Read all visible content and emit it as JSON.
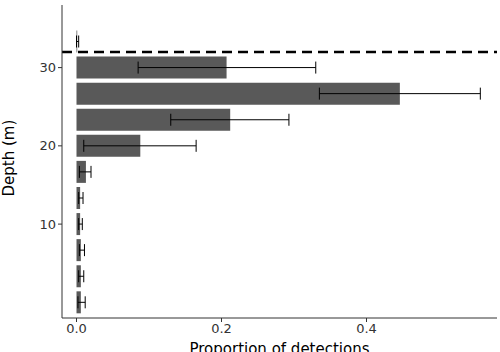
{
  "chart_data": {
    "type": "bar",
    "orientation": "horizontal",
    "x_label": "Proportion of detections",
    "y_label": "Depth (m)",
    "categories": [
      0,
      3.33,
      6.67,
      10,
      13.33,
      16.67,
      20,
      23.33,
      26.67,
      30,
      33.33
    ],
    "values": [
      0.006,
      0.006,
      0.006,
      0.005,
      0.005,
      0.013,
      0.088,
      0.212,
      0.446,
      0.207,
      0.001
    ],
    "ci_lower": [
      0.002,
      0.003,
      0.004,
      0.003,
      0.003,
      0.004,
      0.01,
      0.13,
      0.335,
      0.085,
      0.0
    ],
    "ci_upper": [
      0.012,
      0.01,
      0.011,
      0.008,
      0.009,
      0.02,
      0.165,
      0.293,
      0.557,
      0.33,
      0.003
    ],
    "color": "#595959",
    "xlim": [
      -0.02,
      0.58
    ],
    "xticks": [
      {
        "value": 0,
        "label": "0.0"
      },
      {
        "value": 0.2,
        "label": "0.2"
      },
      {
        "value": 0.4,
        "label": "0.4"
      }
    ],
    "ylim": [
      -2,
      38
    ],
    "yticks": [
      10,
      20,
      30
    ],
    "reference_line": {
      "y": 32,
      "line_style": "dashed"
    },
    "grid": false
  }
}
